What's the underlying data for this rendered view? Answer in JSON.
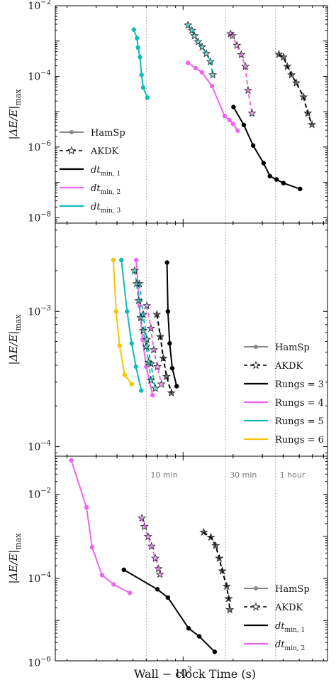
{
  "figure": {
    "xlabel": "Wall − clock Time (s)",
    "ylabel": "|ΔE/E|max",
    "ylabel_parts": {
      "main": "|ΔE/E|",
      "sub": "max"
    },
    "xscale": "log",
    "yscale": "log",
    "xlim": [
      170,
      7400
    ],
    "x_ticks": [
      {
        "value": 1000,
        "label": "10",
        "sup": "3"
      }
    ],
    "time_markers": [
      {
        "value": 600,
        "label": "10 min"
      },
      {
        "value": 1800,
        "label": "30 min"
      },
      {
        "value": 3600,
        "label": "1 hour"
      }
    ]
  },
  "chart_data": [
    {
      "type": "line",
      "panel": "top",
      "ylim": [
        7e-09,
        0.01
      ],
      "y_ticks": [
        {
          "value": 0.01,
          "base": "10",
          "sup": "−2"
        },
        {
          "value": 0.0001,
          "base": "10",
          "sup": "−4"
        },
        {
          "value": 1e-06,
          "base": "10",
          "sup": "−6"
        },
        {
          "value": 1e-08,
          "base": "10",
          "sup": "−8"
        }
      ],
      "legend": {
        "placement": "lower-left",
        "entries": [
          {
            "label": "HamSp",
            "style": "hamsp"
          },
          {
            "label": "AKDK",
            "style": "akdk"
          },
          {
            "label": "dt",
            "sub": "min, 1",
            "color": "#000000"
          },
          {
            "label": "dt",
            "sub": "min, 2",
            "color": "#ee66ee"
          },
          {
            "label": "dt",
            "sub": "min, 3",
            "color": "#11bbbb"
          }
        ]
      },
      "series": [
        {
          "integrator": "HamSp",
          "color": "#000000",
          "x": [
            2010,
            2320,
            2640,
            3050,
            3330,
            3650,
            4020,
            5060
          ],
          "y": [
            1.35e-05,
            4.2e-06,
            1.1e-06,
            3.5e-07,
            1.5e-07,
            1.2e-07,
            9.5e-08,
            6.5e-08
          ]
        },
        {
          "integrator": "AKDK",
          "color": "#000000",
          "x": [
            3770,
            4020,
            4240,
            4490,
            4800,
            5310,
            5630,
            5970
          ],
          "y": [
            0.00042,
            0.00035,
            0.00019,
            0.00011,
            6.5e-05,
            2.6e-05,
            9e-06,
            4.3e-06
          ]
        },
        {
          "integrator": "HamSp",
          "color": "#ee66ee",
          "x": [
            1070,
            1190,
            1300,
            1490,
            1780,
            1900,
            2000,
            2130
          ],
          "y": [
            0.00024,
            0.00017,
            0.00013,
            5.3e-05,
            7.5e-06,
            5.8e-06,
            4.5e-06,
            2.9e-06
          ]
        },
        {
          "integrator": "AKDK",
          "color": "#ee66ee",
          "x": [
            1930,
            1980,
            2110,
            2240,
            2370,
            2460,
            2600
          ],
          "y": [
            0.0016,
            0.0014,
            0.00075,
            0.00041,
            0.00019,
            4e-05,
            9e-06
          ]
        },
        {
          "integrator": "HamSp",
          "color": "#11bbbb",
          "x": [
            505,
            528,
            535,
            550,
            562,
            575,
            610
          ],
          "y": [
            0.0021,
            0.0012,
            0.00065,
            0.00035,
            0.00011,
            4.8e-05,
            2.5e-05
          ]
        },
        {
          "integrator": "AKDK",
          "color": "#11bbbb",
          "x": [
            1070,
            1130,
            1170,
            1230,
            1300,
            1380,
            1460,
            1510
          ],
          "y": [
            0.0028,
            0.002,
            0.0014,
            0.00095,
            0.00068,
            0.00044,
            0.00026,
            0.00011
          ]
        }
      ]
    },
    {
      "type": "line",
      "panel": "middle",
      "ylim": [
        8.5e-05,
        0.0045
      ],
      "y_ticks": [
        {
          "value": 0.001,
          "base": "10",
          "sup": "−3"
        },
        {
          "value": 0.0001,
          "base": "10",
          "sup": "−4"
        }
      ],
      "legend": {
        "placement": "lower-right",
        "entries": [
          {
            "label": "HamSp",
            "style": "hamsp"
          },
          {
            "label": "AKDK",
            "style": "akdk"
          },
          {
            "label": "Rungs = 3",
            "color": "#000000"
          },
          {
            "label": "Rungs = 4",
            "color": "#ee66ee"
          },
          {
            "label": "Rungs = 5",
            "color": "#11bbbb"
          },
          {
            "label": "Rungs = 6",
            "color": "#f5c800"
          }
        ]
      },
      "series": [
        {
          "integrator": "HamSp",
          "color": "#000000",
          "x": [
            800,
            810,
            830,
            860,
            915
          ],
          "y": [
            0.0023,
            0.001,
            0.00058,
            0.00038,
            0.00028
          ]
        },
        {
          "integrator": "AKDK",
          "color": "#000000",
          "x": [
            695,
            730,
            760,
            795,
            850
          ],
          "y": [
            0.00095,
            0.00065,
            0.00045,
            0.00033,
            0.00025
          ]
        },
        {
          "integrator": "HamSp",
          "color": "#ee66ee",
          "x": [
            522,
            545,
            570,
            600,
            655
          ],
          "y": [
            0.0024,
            0.0011,
            0.00062,
            0.00039,
            0.00024
          ]
        },
        {
          "integrator": "AKDK",
          "color": "#ee66ee",
          "x": [
            605,
            640,
            665,
            700,
            740
          ],
          "y": [
            0.0011,
            0.00075,
            0.00052,
            0.00039,
            0.00029
          ]
        },
        {
          "integrator": "HamSp",
          "color": "#11bbbb",
          "x": [
            425,
            460,
            490,
            520,
            560
          ],
          "y": [
            0.0024,
            0.001,
            0.00058,
            0.00039,
            0.00026
          ]
        },
        {
          "integrator": "AKDK",
          "color": "#11bbbb",
          "x": [
            545,
            575,
            605,
            640,
            680
          ],
          "y": [
            0.0016,
            0.00095,
            0.00062,
            0.00041,
            0.00027
          ]
        },
        {
          "integrator": "HamSp",
          "color": "#f5c800",
          "x": [
            380,
            395,
            415,
            445,
            490
          ],
          "y": [
            0.0024,
            0.001,
            0.00056,
            0.00034,
            0.00029
          ]
        },
        {
          "integrator": "AKDK",
          "color": "#11bbbb",
          "x": [
            510,
            525,
            540,
            555,
            575,
            600,
            620,
            640
          ],
          "y": [
            0.002,
            0.0016,
            0.0012,
            0.0009,
            0.00072,
            0.00055,
            0.00042,
            0.00031
          ]
        }
      ]
    },
    {
      "type": "line",
      "panel": "bottom",
      "ylim": [
        1.1e-06,
        0.08
      ],
      "y_ticks": [
        {
          "value": 0.01,
          "base": "10",
          "sup": "−2"
        },
        {
          "value": 0.0001,
          "base": "10",
          "sup": "−4"
        },
        {
          "value": 1e-06,
          "base": "10",
          "sup": "−6"
        }
      ],
      "legend": {
        "placement": "lower-right",
        "entries": [
          {
            "label": "HamSp",
            "style": "hamsp"
          },
          {
            "label": "AKDK",
            "style": "akdk"
          },
          {
            "label": "dt",
            "sub": "min, 1",
            "color": "#000000"
          },
          {
            "label": "dt",
            "sub": "min, 2",
            "color": "#ee66ee"
          }
        ]
      },
      "series": [
        {
          "integrator": "HamSp",
          "color": "#000000",
          "x": [
            440,
            700,
            810,
            1080,
            1250,
            1550
          ],
          "y": [
            0.00016,
            5.5e-05,
            3.5e-05,
            6.5e-06,
            4.2e-06,
            1.8e-06
          ]
        },
        {
          "integrator": "AKDK",
          "color": "#000000",
          "x": [
            1330,
            1470,
            1570,
            1650,
            1720,
            1830,
            1880,
            1910
          ],
          "y": [
            0.00125,
            0.00095,
            0.0006,
            0.0003,
            0.00015,
            6.5e-05,
            3.3e-05,
            1.8e-05
          ]
        },
        {
          "integrator": "HamSp",
          "color": "#ee66ee",
          "x": [
            212,
            262,
            283,
            325,
            382,
            478
          ],
          "y": [
            0.064,
            0.0049,
            0.00055,
            0.00012,
            7.2e-05,
            4.5e-05
          ]
        },
        {
          "integrator": "AKDK",
          "color": "#ee66ee",
          "x": [
            565,
            585,
            615,
            645,
            680,
            710,
            725
          ],
          "y": [
            0.0027,
            0.0017,
            0.00098,
            0.00058,
            0.0003,
            0.00017,
            0.000125
          ]
        }
      ]
    }
  ]
}
